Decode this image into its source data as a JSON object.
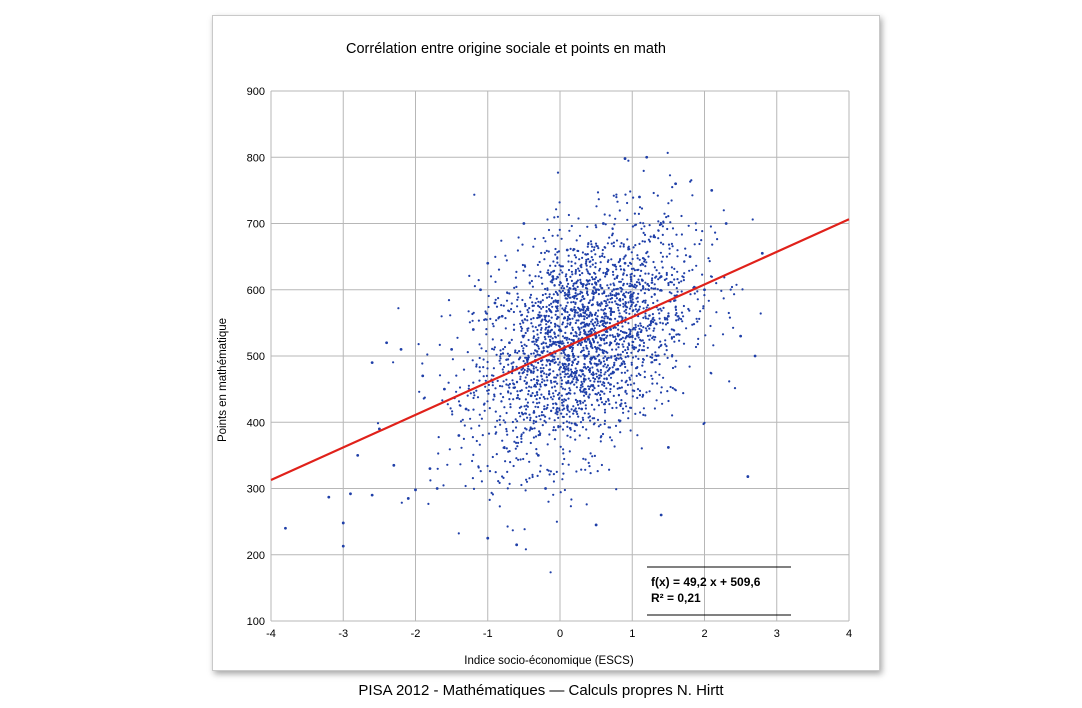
{
  "caption": "PISA 2012 - Mathématiques — Calculs propres N. Hirtt",
  "chart_data": {
    "type": "scatter",
    "title": "Corrélation entre origine sociale et points en math",
    "xlabel": "Indice socio-économique (ESCS)",
    "ylabel": "Points en mathématique",
    "xlim": [
      -4,
      4
    ],
    "ylim": [
      100,
      900
    ],
    "xticks": [
      -4,
      -3,
      -2,
      -1,
      0,
      1,
      2,
      3,
      4
    ],
    "yticks": [
      100,
      200,
      300,
      400,
      500,
      600,
      700,
      800,
      900
    ],
    "grid": true,
    "point_color": "#1f3fa8",
    "trend_color": "#e0211a",
    "trendline": {
      "slope": 49.2,
      "intercept": 509.6
    },
    "equation_lines": [
      "f(x) = 49,2 x + 509,6",
      "R² = 0,21"
    ],
    "points": [
      [
        -3.8,
        240
      ],
      [
        -3.0,
        213
      ],
      [
        -3.0,
        248
      ],
      [
        -3.2,
        287
      ],
      [
        -2.9,
        292
      ],
      [
        -2.6,
        290
      ],
      [
        -2.8,
        350
      ],
      [
        -2.5,
        390
      ],
      [
        -2.3,
        335
      ],
      [
        -2.1,
        285
      ],
      [
        -2.0,
        298
      ],
      [
        -1.8,
        330
      ],
      [
        -1.7,
        300
      ],
      [
        -2.6,
        490
      ],
      [
        -2.4,
        520
      ],
      [
        -2.2,
        510
      ],
      [
        -1.9,
        470
      ],
      [
        -1.6,
        450
      ],
      [
        -1.5,
        510
      ],
      [
        -1.4,
        380
      ],
      [
        -1.3,
        420
      ],
      [
        -1.2,
        540
      ],
      [
        -1.1,
        600
      ],
      [
        -1.0,
        640
      ],
      [
        -0.9,
        580
      ],
      [
        -0.8,
        560
      ],
      [
        -0.7,
        520
      ],
      [
        -0.6,
        480
      ],
      [
        -0.5,
        700
      ],
      [
        -0.4,
        440
      ],
      [
        -0.3,
        350
      ],
      [
        -0.2,
        300
      ],
      [
        -0.1,
        620
      ],
      [
        0.0,
        520
      ],
      [
        0.1,
        660
      ],
      [
        0.2,
        590
      ],
      [
        0.3,
        420
      ],
      [
        0.4,
        560
      ],
      [
        0.5,
        600
      ],
      [
        0.6,
        700
      ],
      [
        0.7,
        540
      ],
      [
        0.8,
        480
      ],
      [
        0.9,
        640
      ],
      [
        1.0,
        590
      ],
      [
        1.1,
        740
      ],
      [
        1.2,
        800
      ],
      [
        1.3,
        680
      ],
      [
        1.4,
        620
      ],
      [
        1.5,
        560
      ],
      [
        1.6,
        760
      ],
      [
        1.8,
        650
      ],
      [
        2.0,
        600
      ],
      [
        2.1,
        750
      ],
      [
        2.3,
        700
      ],
      [
        2.5,
        530
      ],
      [
        2.6,
        318
      ],
      [
        2.7,
        500
      ],
      [
        2.8,
        655
      ],
      [
        -1.0,
        225
      ],
      [
        -0.6,
        215
      ],
      [
        0.5,
        245
      ],
      [
        1.4,
        260
      ],
      [
        1.5,
        362
      ],
      [
        0.9,
        798
      ]
    ]
  }
}
